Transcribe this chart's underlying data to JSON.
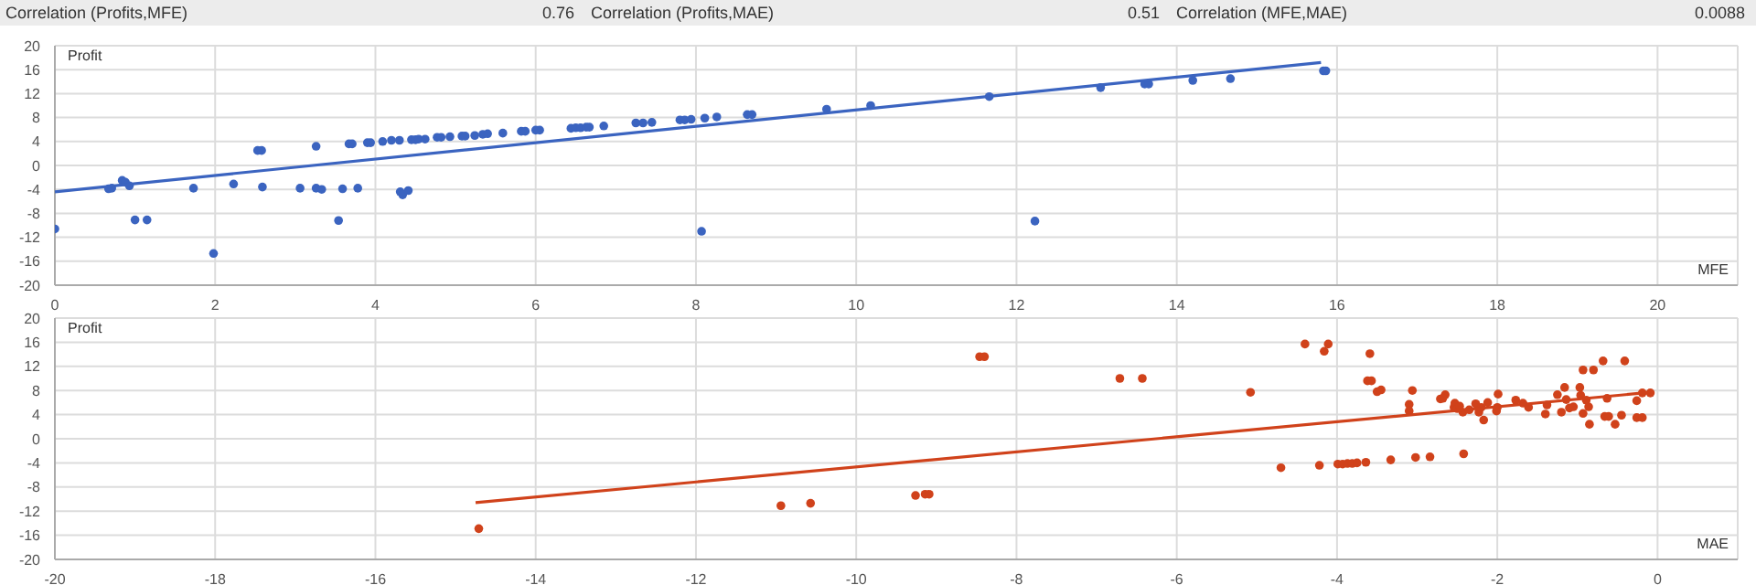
{
  "chart_data": [
    {
      "type": "scatter",
      "ylabel": "Profit",
      "xlabel": "MFE",
      "xlim": [
        0,
        21
      ],
      "xticks": [
        0,
        2,
        4,
        6,
        8,
        10,
        12,
        14,
        16,
        18,
        20
      ],
      "ylim": [
        -20,
        20
      ],
      "yticks": [
        -20,
        -16,
        -12,
        -8,
        -4,
        0,
        4,
        8,
        12,
        16,
        20
      ],
      "grid": true,
      "marker": "circle",
      "annotations": [
        "Correlation (Profits,MFE)",
        "0.76",
        "Correlation (Profits,MAE)",
        "0.51",
        "Correlation (MFE,MAE)",
        "0.0088"
      ],
      "series": [
        {
          "color": "#3b64c0",
          "x": [
            0,
            0.67,
            0.71,
            0.84,
            0.88,
            0.93,
            1.0,
            1.15,
            1.73,
            1.98,
            2.23,
            2.53,
            2.58,
            2.59,
            3.06,
            3.26,
            3.26,
            3.33,
            3.54,
            3.59,
            3.67,
            3.71,
            3.78,
            3.9,
            3.94,
            4.09,
            4.2,
            4.3,
            4.31,
            4.34,
            4.41,
            4.45,
            4.5,
            4.54,
            4.62,
            4.77,
            4.82,
            4.93,
            5.08,
            5.12,
            5.24,
            5.34,
            5.4,
            5.59,
            5.82,
            5.87,
            6.0,
            6.05,
            6.44,
            6.5,
            6.56,
            6.63,
            6.67,
            6.85,
            7.25,
            7.34,
            7.45,
            7.8,
            7.86,
            7.94,
            8.07,
            8.11,
            8.26,
            8.64,
            8.7,
            9.63,
            10.18,
            11.66,
            12.23,
            13.05,
            13.6,
            13.65,
            14.2,
            14.67,
            15.83,
            15.86
          ],
          "values": [
            -10.6,
            -3.9,
            -3.8,
            -2.5,
            -2.8,
            -3.4,
            -9.1,
            -9.1,
            -3.8,
            -14.7,
            -3.1,
            2.5,
            2.5,
            -3.6,
            -3.8,
            3.2,
            -3.8,
            -4.0,
            -9.2,
            -3.9,
            3.6,
            3.6,
            -3.8,
            3.8,
            3.8,
            4.0,
            4.2,
            4.2,
            -4.4,
            -4.9,
            -4.2,
            4.3,
            4.3,
            4.4,
            4.4,
            4.7,
            4.7,
            4.8,
            4.9,
            4.9,
            5.0,
            5.2,
            5.3,
            5.4,
            5.7,
            5.7,
            5.9,
            5.9,
            6.2,
            6.3,
            6.3,
            6.4,
            6.4,
            6.6,
            7.1,
            7.1,
            7.2,
            7.6,
            7.6,
            7.7,
            -11.0,
            7.9,
            8.1,
            8.5,
            8.5,
            9.4,
            10.0,
            11.5,
            -9.3,
            13.0,
            13.6,
            13.6,
            14.2,
            14.5,
            15.8,
            15.8
          ]
        },
        {
          "type": "line",
          "marker": "none",
          "color": "#3b64c0",
          "x": [
            0,
            15.8
          ],
          "values": [
            -4.4,
            17.2
          ]
        }
      ]
    },
    {
      "type": "scatter",
      "ylabel": "Profit",
      "xlabel": "MAE",
      "xlim": [
        -20,
        1
      ],
      "xticks": [
        -20,
        -18,
        -16,
        -14,
        -12,
        -10,
        -8,
        -6,
        -4,
        -2,
        0
      ],
      "ylim": [
        -20,
        20
      ],
      "yticks": [
        -20,
        -16,
        -12,
        -8,
        -4,
        0,
        4,
        8,
        12,
        16,
        20
      ],
      "grid": true,
      "marker": "circle",
      "series": [
        {
          "color": "#d0421b",
          "x": [
            -14.71,
            -10.94,
            -10.57,
            -9.26,
            -9.14,
            -9.09,
            -8.46,
            -8.4,
            -6.71,
            -6.43,
            -5.08,
            -4.7,
            -4.4,
            -4.22,
            -4.16,
            -4.11,
            -3.99,
            -3.93,
            -3.87,
            -3.81,
            -3.75,
            -3.64,
            -3.62,
            -3.57,
            -3.59,
            -3.5,
            -3.45,
            -3.33,
            -3.1,
            -3.1,
            -3.06,
            -3.02,
            -2.84,
            -2.71,
            -2.65,
            -2.68,
            -2.54,
            -2.53,
            -2.5,
            -2.47,
            -2.42,
            -2.43,
            -2.35,
            -2.27,
            -2.23,
            -2.2,
            -2.17,
            -2.12,
            -2.01,
            -2.0,
            -1.99,
            -1.77,
            -1.68,
            -1.61,
            -1.4,
            -1.38,
            -1.25,
            -1.2,
            -1.16,
            -1.14,
            -1.1,
            -1.05,
            -0.97,
            -0.96,
            -0.93,
            -0.93,
            -0.89,
            -0.86,
            -0.85,
            -0.8,
            -0.68,
            -0.66,
            -0.61,
            -0.63,
            -0.53,
            -0.45,
            -0.41,
            -0.26,
            -0.26,
            -0.19,
            -0.19,
            -0.09
          ],
          "values": [
            -14.9,
            -11.1,
            -10.7,
            -9.4,
            -9.2,
            -9.2,
            13.6,
            13.6,
            10.0,
            10.0,
            7.7,
            -4.8,
            15.7,
            -4.4,
            14.5,
            15.7,
            -4.2,
            -4.2,
            -4.1,
            -4.1,
            -4.0,
            -3.9,
            9.6,
            9.6,
            14.1,
            7.8,
            8.1,
            -3.5,
            5.7,
            4.6,
            8.0,
            -3.1,
            -3.0,
            6.6,
            7.3,
            6.7,
            5.2,
            5.9,
            5.0,
            5.4,
            -2.5,
            4.4,
            4.8,
            5.8,
            4.4,
            5.2,
            3.1,
            6.0,
            4.6,
            5.2,
            7.4,
            6.4,
            5.9,
            5.2,
            4.1,
            5.6,
            7.3,
            4.4,
            8.5,
            6.5,
            5.1,
            5.3,
            8.5,
            7.2,
            11.4,
            4.2,
            6.4,
            5.3,
            2.4,
            11.4,
            12.9,
            3.7,
            3.7,
            6.7,
            2.4,
            3.9,
            12.9,
            6.3,
            3.5,
            3.5,
            7.6,
            7.6
          ]
        },
        {
          "type": "line",
          "marker": "none",
          "color": "#d0421b",
          "x": [
            -14.75,
            -0.09
          ],
          "values": [
            -10.6,
            7.7
          ]
        }
      ]
    }
  ]
}
